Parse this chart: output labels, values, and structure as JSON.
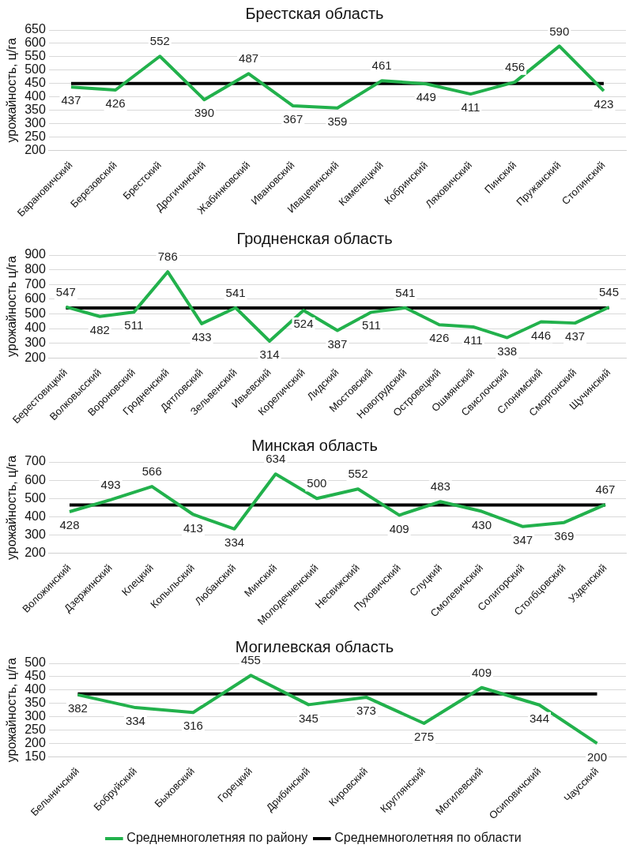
{
  "chart_data": [
    {
      "type": "line",
      "title": "Брестская область",
      "ylabel": "урожайность, ц/га",
      "categories": [
        "Барановичский",
        "Березовский",
        "Брестский",
        "Дрогичинский",
        "Жабинковский",
        "Ивановский",
        "Ивацевичский",
        "Каменецкий",
        "Кобринский",
        "Ляховичский",
        "Пинский",
        "Пружанский",
        "Столинский"
      ],
      "series": [
        {
          "color": "#22b14c",
          "values": [
            437,
            426,
            552,
            390,
            487,
            367,
            359,
            461,
            449,
            411,
            456,
            590,
            423
          ],
          "value_labels": [
            "437",
            "426",
            "552",
            "390",
            "487",
            "367",
            "359",
            "461",
            "449",
            "411",
            "456",
            "590",
            "423"
          ]
        },
        {
          "color": "#000000",
          "values": [
            450,
            450,
            450,
            450,
            450,
            450,
            450,
            450,
            450,
            450,
            450,
            450,
            450
          ]
        }
      ],
      "ylim": [
        200,
        650
      ],
      "yticks": [
        200,
        250,
        300,
        350,
        400,
        450,
        500,
        550,
        600,
        650
      ],
      "grid": "y",
      "marker": "none",
      "line_style": "solid",
      "legend": false
    },
    {
      "type": "line",
      "title": "Гродненская область",
      "ylabel": "урожайность ц/га",
      "categories": [
        "Берестовицкий",
        "Волковысский",
        "Вороновский",
        "Гродненский",
        "Дятловский",
        "Зельвенский",
        "Ивьевский",
        "Кореличский",
        "Лидский",
        "Мостовский",
        "Новогрудский",
        "Островецкий",
        "Ошмянский",
        "Свислочский",
        "Слонимский",
        "Сморгонский",
        "Щучинский"
      ],
      "series": [
        {
          "color": "#22b14c",
          "values": [
            547,
            482,
            511,
            786,
            433,
            541,
            314,
            524,
            387,
            511,
            541,
            426,
            411,
            338,
            446,
            437,
            545
          ],
          "value_labels": [
            "547",
            "482",
            "511",
            "786",
            "433",
            "541",
            "314",
            "524",
            "387",
            "511",
            "541",
            "426",
            "411",
            "338",
            "446",
            "437",
            "545"
          ]
        },
        {
          "color": "#000000",
          "values": [
            540,
            540,
            540,
            540,
            540,
            540,
            540,
            540,
            540,
            540,
            540,
            540,
            540,
            540,
            540,
            540,
            540
          ]
        }
      ],
      "ylim": [
        200,
        900
      ],
      "yticks": [
        200,
        300,
        400,
        500,
        600,
        700,
        800,
        900
      ],
      "grid": "y",
      "marker": "none",
      "line_style": "solid",
      "legend": false
    },
    {
      "type": "line",
      "title": "Минская область",
      "ylabel": "урожайность, ц/га",
      "categories": [
        "Воложинский",
        "Дзержинский",
        "Клецкий",
        "Копыльский",
        "Любанский",
        "Минский",
        "Молодечненский",
        "Несвижский",
        "Пуховичский",
        "Слуцкий",
        "Смолевичский",
        "Солигорский",
        "Столбцовский",
        "Узденский"
      ],
      "series": [
        {
          "color": "#22b14c",
          "values": [
            428,
            493,
            566,
            413,
            334,
            634,
            500,
            552,
            409,
            483,
            430,
            347,
            369,
            467
          ],
          "value_labels": [
            "428",
            "493",
            "566",
            "413",
            "334",
            "634",
            "500",
            "552",
            "409",
            "483",
            "430",
            "347",
            "369",
            "467"
          ]
        },
        {
          "color": "#000000",
          "values": [
            465,
            465,
            465,
            465,
            465,
            465,
            465,
            465,
            465,
            465,
            465,
            465,
            465,
            465
          ]
        }
      ],
      "ylim": [
        200,
        700
      ],
      "yticks": [
        200,
        300,
        400,
        500,
        600,
        700
      ],
      "grid": "y",
      "marker": "none",
      "line_style": "solid",
      "legend": false
    },
    {
      "type": "line",
      "title": "Могилевская область",
      "ylabel": "урожайность, ц/га",
      "categories": [
        "Белыничский",
        "Бобруйский",
        "Быховский",
        "Горецкий",
        "Дрибинский",
        "Кировский",
        "Круглянский",
        "Могилевский",
        "Осиповичский",
        "Чаусский"
      ],
      "series": [
        {
          "name": "Среднемноголетняя по району",
          "color": "#22b14c",
          "values": [
            382,
            334,
            316,
            455,
            345,
            373,
            275,
            409,
            344,
            200
          ],
          "value_labels": [
            "382",
            "334",
            "316",
            "455",
            "345",
            "373",
            "275",
            "409",
            "344",
            "200"
          ]
        },
        {
          "name": "Среднемноголетняя по области",
          "color": "#000000",
          "values": [
            385,
            385,
            385,
            385,
            385,
            385,
            385,
            385,
            385,
            385
          ]
        }
      ],
      "ylim": [
        150,
        500
      ],
      "yticks": [
        150,
        200,
        250,
        300,
        350,
        400,
        450,
        500
      ],
      "grid": "y",
      "marker": "none",
      "line_style": "solid",
      "legend": "bottom"
    }
  ]
}
